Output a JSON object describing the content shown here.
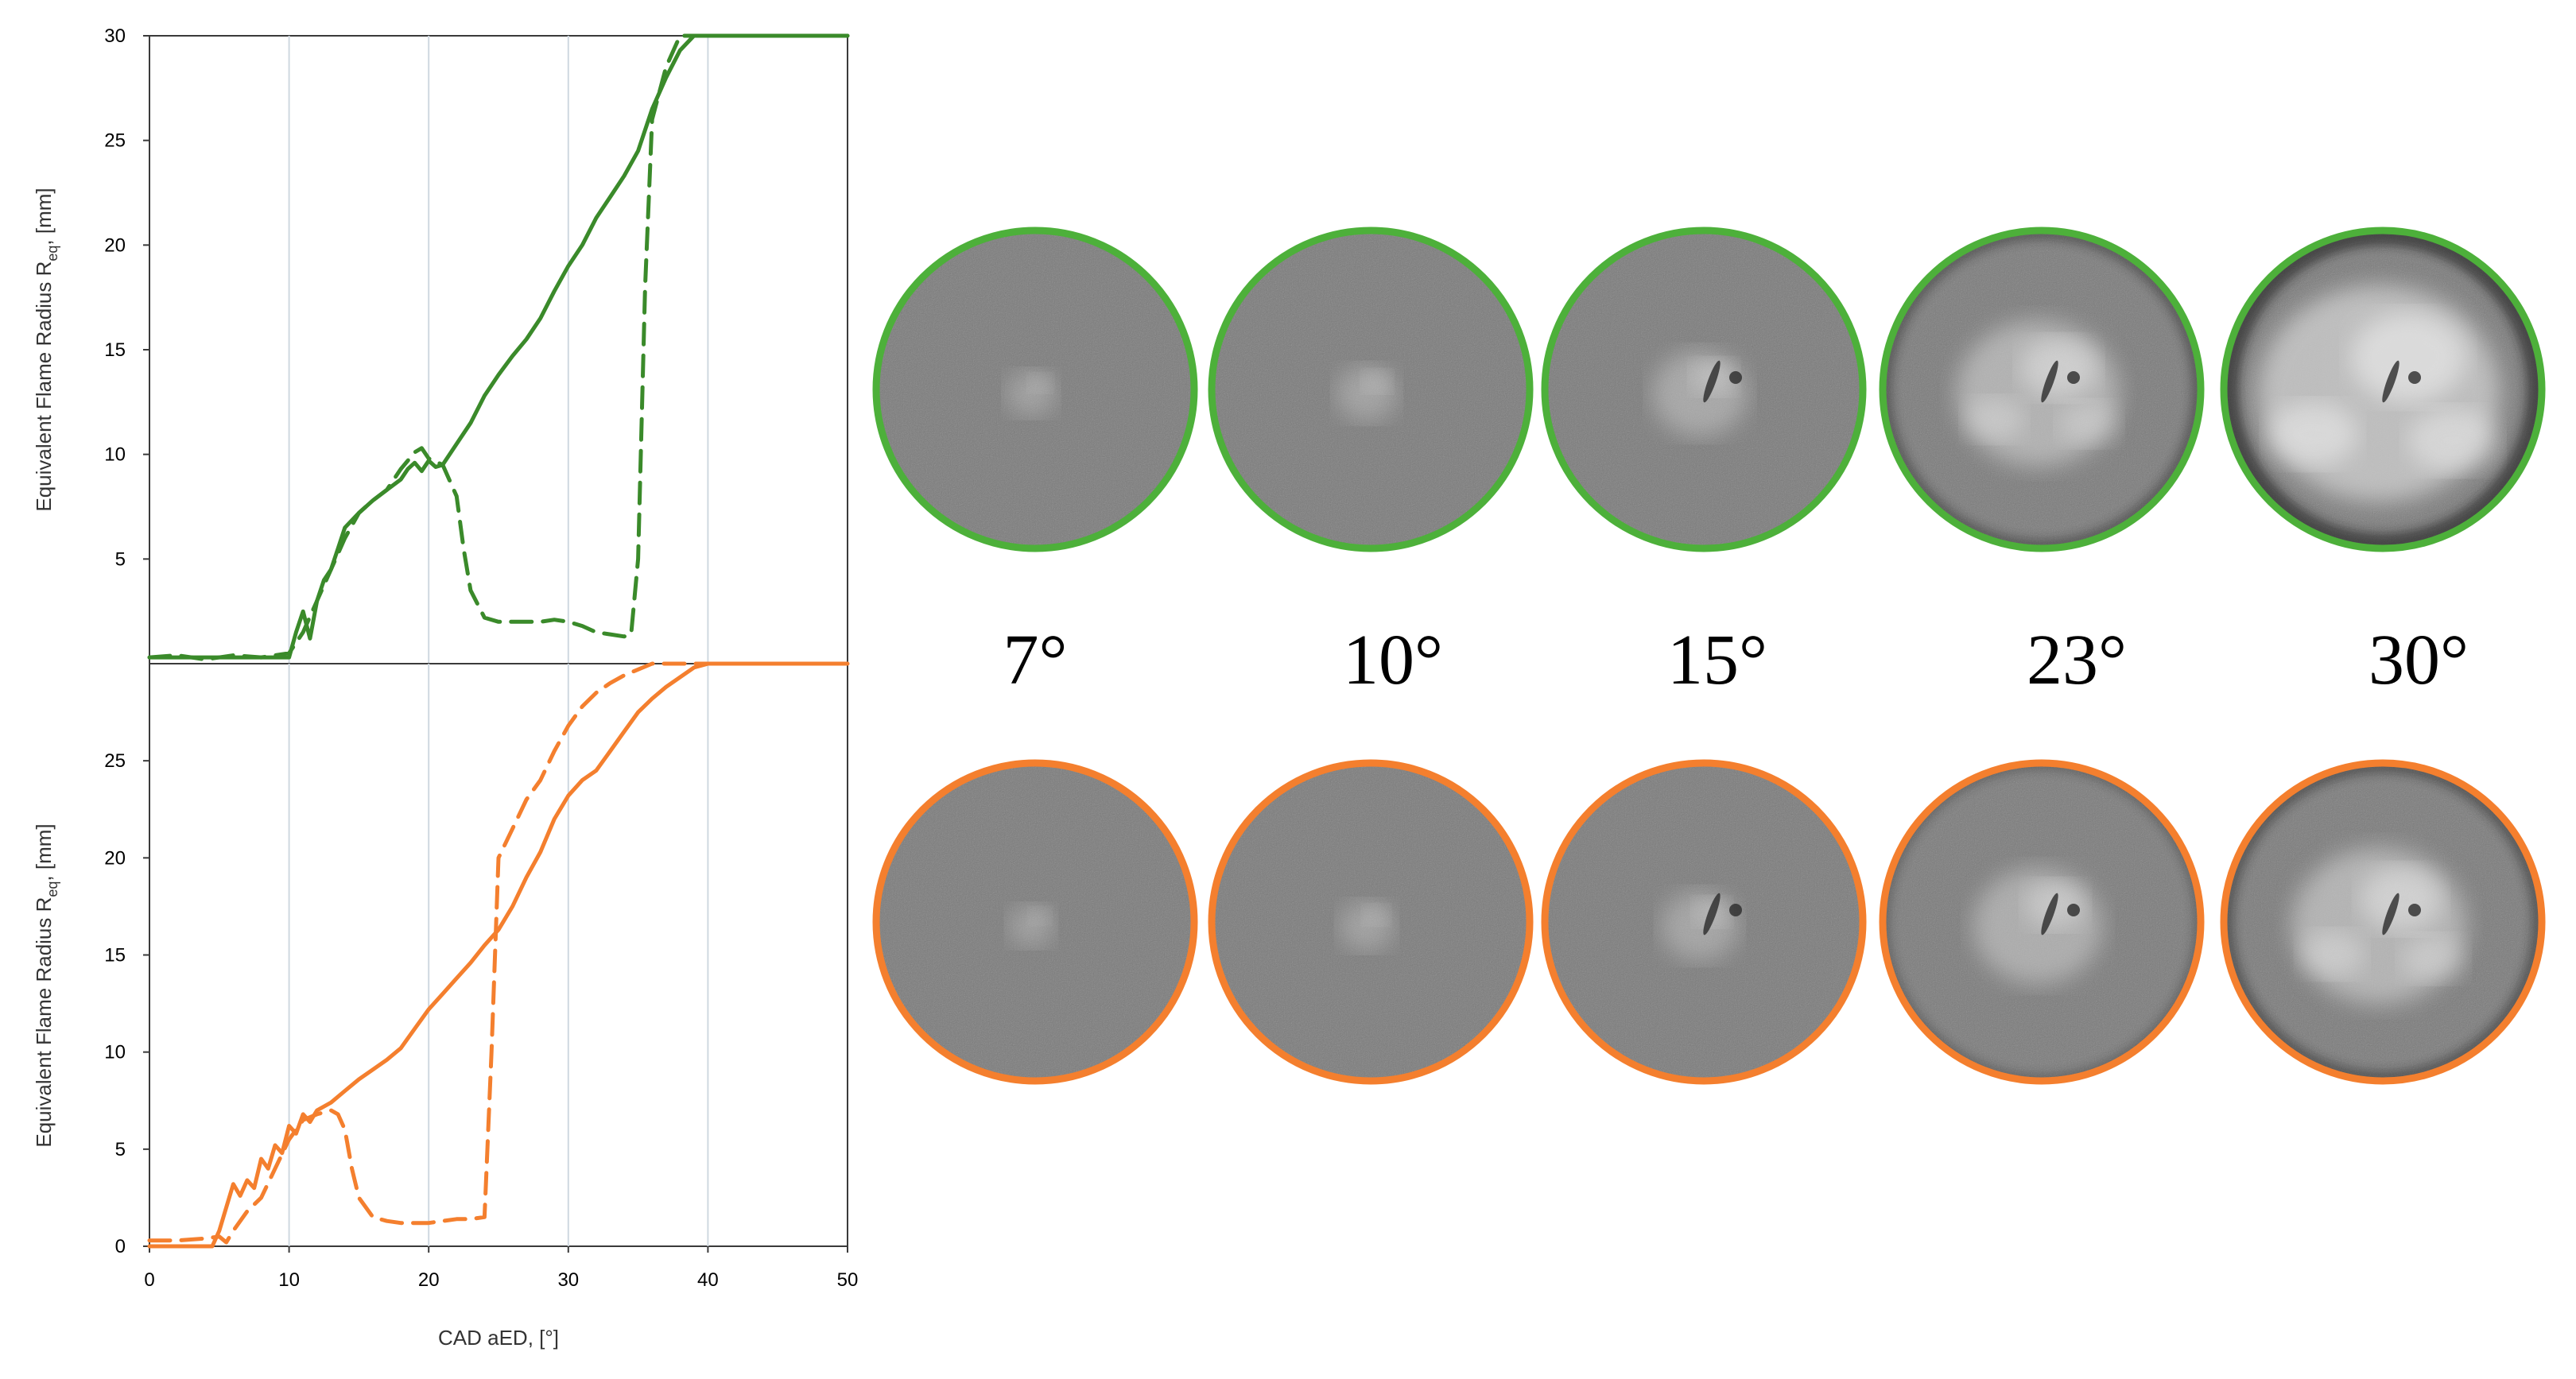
{
  "chart_data": [
    {
      "type": "line",
      "panel": "top",
      "ylabel": "Equivalent Flame Radius R",
      "ylabel_sub": "eq",
      "ylabel_unit": ", [mm]",
      "xlim": [
        0,
        50
      ],
      "ylim": [
        0,
        30
      ],
      "yticks": [
        5,
        10,
        15,
        20,
        25,
        30
      ],
      "x_gridlines": [
        10,
        20,
        30,
        40
      ],
      "grid": "vertical",
      "color": "#3a8a2a",
      "series": [
        {
          "style": "solid",
          "x": [
            0,
            10,
            10.5,
            11,
            11.5,
            12,
            12.5,
            13,
            13.5,
            14,
            15,
            16,
            17,
            18,
            18.5,
            19,
            19.5,
            20,
            20.5,
            21,
            22,
            23,
            24,
            25,
            26,
            27,
            28,
            29,
            30,
            31,
            32,
            33,
            34,
            35,
            36,
            37,
            38,
            39,
            40,
            41,
            45,
            50
          ],
          "y": [
            0.3,
            0.3,
            1.5,
            2.5,
            1.2,
            3.0,
            4.0,
            4.5,
            5.5,
            6.5,
            7.2,
            7.8,
            8.3,
            8.8,
            9.3,
            9.6,
            9.2,
            9.7,
            9.4,
            9.5,
            10.5,
            11.5,
            12.8,
            13.8,
            14.7,
            15.5,
            16.5,
            17.8,
            19.0,
            20.0,
            21.3,
            22.3,
            23.3,
            24.5,
            26.5,
            28.0,
            29.3,
            30.0,
            30.0,
            30.0,
            30.0,
            30.0
          ]
        },
        {
          "style": "dashed",
          "x": [
            0,
            2,
            4,
            6,
            8,
            10,
            11,
            12,
            13,
            14,
            15,
            16,
            17,
            18,
            18.5,
            19,
            19.5,
            20,
            21,
            22,
            22.5,
            23,
            24,
            25,
            26,
            27,
            28,
            29,
            30,
            31,
            32,
            33,
            34,
            34.5,
            35,
            35.5,
            36,
            37,
            38,
            40,
            45,
            50
          ],
          "y": [
            0.3,
            0.4,
            0.2,
            0.4,
            0.3,
            0.5,
            1.5,
            3.0,
            4.5,
            6.0,
            7.2,
            7.8,
            8.3,
            9.3,
            9.7,
            10.1,
            10.3,
            9.8,
            9.5,
            8.0,
            5.5,
            3.5,
            2.2,
            2.0,
            2.0,
            2.0,
            2.0,
            2.1,
            2.0,
            1.8,
            1.5,
            1.4,
            1.3,
            1.4,
            5.0,
            18.0,
            26.0,
            28.5,
            30.0,
            30.0,
            30.0,
            30.0
          ]
        }
      ]
    },
    {
      "type": "line",
      "panel": "bottom",
      "xlabel": "CAD aED, [°]",
      "ylabel": "Equivalent Flame Radius R",
      "ylabel_sub": "eq",
      "ylabel_unit": ", [mm]",
      "xlim": [
        0,
        50
      ],
      "ylim": [
        0,
        30
      ],
      "xticks": [
        0,
        10,
        20,
        30,
        40,
        50
      ],
      "yticks": [
        0,
        5,
        10,
        15,
        20,
        25
      ],
      "x_gridlines": [
        10,
        20,
        30,
        40
      ],
      "grid": "vertical",
      "color": "#f47f2e",
      "series": [
        {
          "style": "solid",
          "x": [
            0,
            4.5,
            5,
            5.5,
            6,
            6.5,
            7,
            7.5,
            8,
            8.5,
            9,
            9.5,
            10,
            10.5,
            11,
            11.5,
            12,
            13,
            14,
            15,
            16,
            17,
            18,
            19,
            20,
            21,
            22,
            23,
            24,
            25,
            26,
            27,
            28,
            29,
            30,
            31,
            32,
            33,
            34,
            35,
            36,
            37,
            38,
            39,
            40,
            41,
            45,
            50
          ],
          "y": [
            0,
            0,
            0.8,
            2.0,
            3.2,
            2.6,
            3.4,
            3.0,
            4.5,
            4.0,
            5.2,
            4.8,
            6.2,
            5.8,
            6.8,
            6.4,
            7.0,
            7.4,
            8.0,
            8.6,
            9.1,
            9.6,
            10.2,
            11.2,
            12.2,
            13.0,
            13.8,
            14.6,
            15.5,
            16.3,
            17.5,
            19.0,
            20.3,
            22.0,
            23.2,
            24.0,
            24.5,
            25.5,
            26.5,
            27.5,
            28.2,
            28.8,
            29.3,
            29.8,
            30.0,
            30.0,
            30.0,
            30.0
          ]
        },
        {
          "style": "dashed",
          "x": [
            0,
            2,
            4,
            5,
            5.5,
            6,
            7,
            8,
            9,
            10,
            11,
            12,
            13,
            13.5,
            14,
            14.5,
            15,
            16,
            17,
            18,
            19,
            20,
            21,
            22,
            23,
            24,
            24.5,
            25,
            26,
            27,
            28,
            29,
            30,
            31,
            32,
            33,
            34,
            35,
            36,
            37,
            38,
            39,
            40,
            45,
            50
          ],
          "y": [
            0.3,
            0.3,
            0.4,
            0.5,
            0.2,
            0.8,
            1.8,
            2.5,
            4.0,
            5.5,
            6.5,
            6.8,
            7.0,
            6.8,
            6.0,
            4.0,
            2.5,
            1.5,
            1.3,
            1.2,
            1.2,
            1.2,
            1.3,
            1.4,
            1.4,
            1.5,
            10.0,
            20.0,
            21.5,
            23.0,
            24.0,
            25.5,
            26.8,
            27.8,
            28.5,
            29.0,
            29.4,
            29.7,
            30.0,
            30.0,
            30.0,
            30.0,
            30.0,
            30.0,
            30.0
          ]
        }
      ]
    }
  ],
  "frame_labels": [
    "7°",
    "10°",
    "15°",
    "23°",
    "30°"
  ],
  "ring_colors": {
    "top": "#4db03a",
    "bottom": "#f47f2e"
  },
  "frames": {
    "top": [
      {
        "intensity": 0.1
      },
      {
        "intensity": 0.15
      },
      {
        "intensity": 0.3
      },
      {
        "intensity": 0.6
      },
      {
        "intensity": 0.95
      }
    ],
    "bottom": [
      {
        "intensity": 0.08
      },
      {
        "intensity": 0.12
      },
      {
        "intensity": 0.22
      },
      {
        "intensity": 0.45
      },
      {
        "intensity": 0.65
      }
    ]
  }
}
